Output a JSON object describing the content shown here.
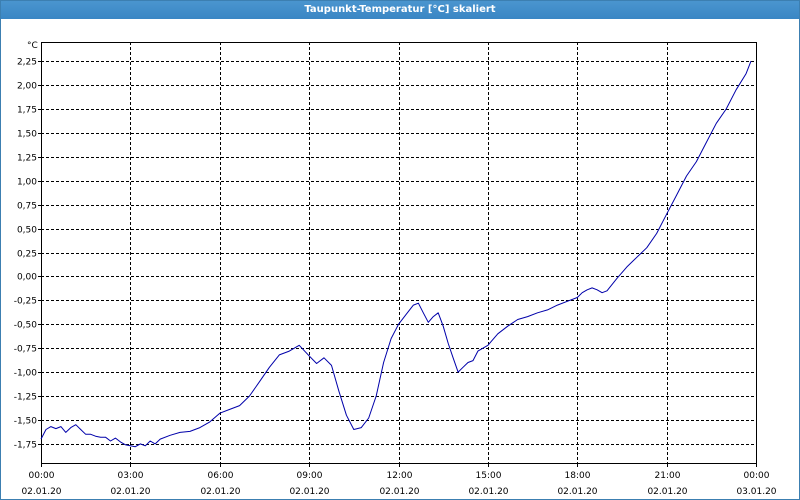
{
  "window": {
    "title": "Taupunkt-Temperatur [°C] skaliert"
  },
  "chart_data": {
    "type": "line",
    "title": "Taupunkt-Temperatur [°C] skaliert",
    "ylabel": "°C",
    "xlabel": "",
    "ylim": [
      -1.95,
      2.45
    ],
    "xlim": [
      "2020-01-02 00:00",
      "2020-01-03 00:00"
    ],
    "grid": true,
    "line_color": "#0000aa",
    "y_ticks": [
      "2,25",
      "2,00",
      "1,75",
      "1,50",
      "1,25",
      "1,00",
      "0,75",
      "0,50",
      "0,25",
      "0,00",
      "-0,25",
      "-0,50",
      "-0,75",
      "-1,00",
      "-1,25",
      "-1,50",
      "-1,75"
    ],
    "x_ticks": [
      {
        "time": "00:00",
        "date": "02.01.20"
      },
      {
        "time": "03:00",
        "date": "02.01.20"
      },
      {
        "time": "06:00",
        "date": "02.01.20"
      },
      {
        "time": "09:00",
        "date": "02.01.20"
      },
      {
        "time": "12:00",
        "date": "02.01.20"
      },
      {
        "time": "15:00",
        "date": "02.01.20"
      },
      {
        "time": "18:00",
        "date": "02.01.20"
      },
      {
        "time": "21:00",
        "date": "02.01.20"
      },
      {
        "time": "00:00",
        "date": "03.01.20"
      }
    ],
    "series": [
      {
        "x": [
          "2020-01-02 00:00",
          "2020-01-02 00:10",
          "2020-01-02 00:20",
          "2020-01-02 00:30",
          "2020-01-02 00:40",
          "2020-01-02 00:50",
          "2020-01-02 01:00",
          "2020-01-02 01:10",
          "2020-01-02 01:20",
          "2020-01-02 01:30",
          "2020-01-02 01:40",
          "2020-01-02 01:50",
          "2020-01-02 02:00",
          "2020-01-02 02:10",
          "2020-01-02 02:20",
          "2020-01-02 02:30",
          "2020-01-02 02:40",
          "2020-01-02 02:50",
          "2020-01-02 03:00",
          "2020-01-02 03:10",
          "2020-01-02 03:20",
          "2020-01-02 03:30",
          "2020-01-02 03:40",
          "2020-01-02 03:50",
          "2020-01-02 04:00",
          "2020-01-02 04:20",
          "2020-01-02 04:40",
          "2020-01-02 05:00",
          "2020-01-02 05:20",
          "2020-01-02 05:40",
          "2020-01-02 06:00",
          "2020-01-02 06:20",
          "2020-01-02 06:40",
          "2020-01-02 07:00",
          "2020-01-02 07:20",
          "2020-01-02 07:40",
          "2020-01-02 08:00",
          "2020-01-02 08:20",
          "2020-01-02 08:40",
          "2020-01-02 09:00",
          "2020-01-02 09:15",
          "2020-01-02 09:30",
          "2020-01-02 09:45",
          "2020-01-02 10:00",
          "2020-01-02 10:15",
          "2020-01-02 10:30",
          "2020-01-02 10:45",
          "2020-01-02 11:00",
          "2020-01-02 11:15",
          "2020-01-02 11:30",
          "2020-01-02 11:45",
          "2020-01-02 12:00",
          "2020-01-02 12:15",
          "2020-01-02 12:30",
          "2020-01-02 12:40",
          "2020-01-02 12:50",
          "2020-01-02 13:00",
          "2020-01-02 13:10",
          "2020-01-02 13:20",
          "2020-01-02 13:30",
          "2020-01-02 13:40",
          "2020-01-02 13:50",
          "2020-01-02 14:00",
          "2020-01-02 14:10",
          "2020-01-02 14:20",
          "2020-01-02 14:30",
          "2020-01-02 14:40",
          "2020-01-02 15:00",
          "2020-01-02 15:20",
          "2020-01-02 15:40",
          "2020-01-02 16:00",
          "2020-01-02 16:20",
          "2020-01-02 16:40",
          "2020-01-02 17:00",
          "2020-01-02 17:20",
          "2020-01-02 17:40",
          "2020-01-02 18:00",
          "2020-01-02 18:10",
          "2020-01-02 18:20",
          "2020-01-02 18:30",
          "2020-01-02 18:40",
          "2020-01-02 18:50",
          "2020-01-02 19:00",
          "2020-01-02 19:20",
          "2020-01-02 19:40",
          "2020-01-02 20:00",
          "2020-01-02 20:20",
          "2020-01-02 20:40",
          "2020-01-02 21:00",
          "2020-01-02 21:20",
          "2020-01-02 21:40",
          "2020-01-02 22:00",
          "2020-01-02 22:20",
          "2020-01-02 22:40",
          "2020-01-02 23:00",
          "2020-01-02 23:20",
          "2020-01-02 23:40",
          "2020-01-02 23:50"
        ],
        "y": [
          -1.7,
          -1.6,
          -1.57,
          -1.59,
          -1.57,
          -1.63,
          -1.58,
          -1.55,
          -1.6,
          -1.65,
          -1.65,
          -1.67,
          -1.68,
          -1.68,
          -1.72,
          -1.69,
          -1.73,
          -1.76,
          -1.77,
          -1.78,
          -1.75,
          -1.77,
          -1.72,
          -1.75,
          -1.7,
          -1.66,
          -1.63,
          -1.62,
          -1.58,
          -1.52,
          -1.43,
          -1.39,
          -1.35,
          -1.25,
          -1.1,
          -0.95,
          -0.82,
          -0.78,
          -0.72,
          -0.83,
          -0.91,
          -0.85,
          -0.93,
          -1.2,
          -1.45,
          -1.6,
          -1.58,
          -1.48,
          -1.25,
          -0.9,
          -0.65,
          -0.5,
          -0.4,
          -0.3,
          -0.28,
          -0.38,
          -0.48,
          -0.42,
          -0.38,
          -0.52,
          -0.7,
          -0.85,
          -1.0,
          -0.95,
          -0.9,
          -0.88,
          -0.78,
          -0.72,
          -0.6,
          -0.52,
          -0.45,
          -0.42,
          -0.38,
          -0.35,
          -0.3,
          -0.26,
          -0.22,
          -0.17,
          -0.14,
          -0.12,
          -0.14,
          -0.17,
          -0.15,
          -0.02,
          0.1,
          0.2,
          0.3,
          0.45,
          0.65,
          0.85,
          1.05,
          1.2,
          1.4,
          1.6,
          1.75,
          1.95,
          2.12,
          2.25
        ]
      }
    ]
  }
}
